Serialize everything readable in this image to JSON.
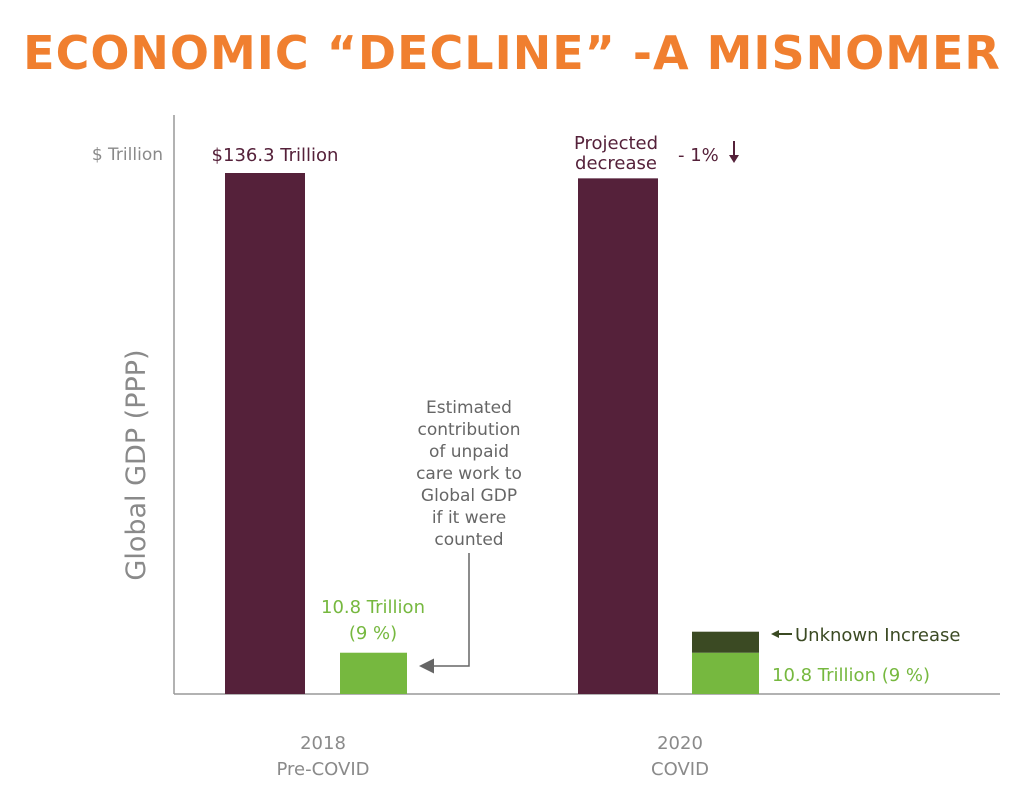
{
  "title": "ECONOMIC “DECLINE” -A MISNOMER",
  "colors": {
    "title": "#f07f2f",
    "gdp_bar": "#55213a",
    "care_bar": "#76b83f",
    "unknown_bar": "#3b4a23",
    "axis": "#999999",
    "axis_text": "#8a8a8a",
    "annotation_text": "#666666"
  },
  "chart_data": {
    "type": "bar",
    "title": "ECONOMIC “DECLINE” -A MISNOMER",
    "ylabel": "Global GDP (PPP)",
    "yunit_label": "$ Trillion",
    "ylim": [
      0,
      140
    ],
    "categories": [
      {
        "year": "2018",
        "label": "Pre-COVID"
      },
      {
        "year": "2020",
        "label": "COVID"
      }
    ],
    "series": [
      {
        "values": [
          136.3,
          134.9
        ],
        "color": "#55213a",
        "data_labels": [
          "$136.3 Trillion",
          ""
        ]
      },
      {
        "values": [
          10.8,
          10.8
        ],
        "color": "#76b83f",
        "data_labels": [
          "10.8 Trillion",
          "10.8 Trillion (9 %)"
        ],
        "sub_labels": [
          "(9 %)",
          ""
        ]
      },
      {
        "values": [
          0,
          5.5
        ],
        "stacked_on": 1,
        "color": "#3b4a23",
        "data_labels": [
          "",
          "Unknown Increase"
        ]
      }
    ],
    "annotations": {
      "projected": {
        "line1": "Projected",
        "line2": "decrease",
        "change": "- 1%"
      },
      "unpaid_care": [
        "Estimated",
        "contribution",
        "of unpaid",
        "care work to",
        "Global GDP",
        "if it were",
        "counted"
      ]
    }
  }
}
